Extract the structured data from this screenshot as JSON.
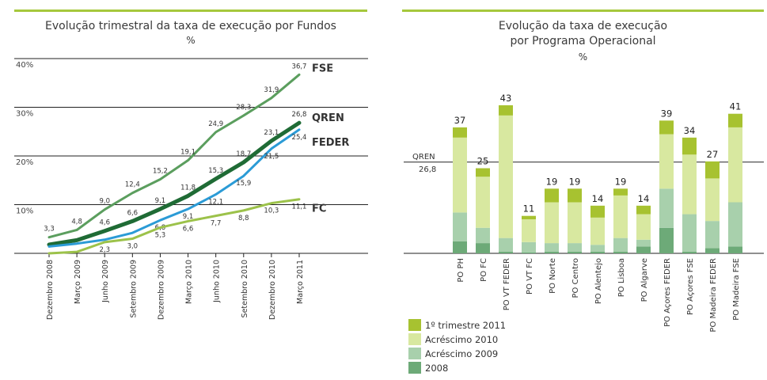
{
  "left": {
    "title": "Evolução trimestral da taxa de execução por Fundos",
    "unit": "%",
    "y_ticks": [
      "40%",
      "30%",
      "20%",
      "10%"
    ]
  },
  "right": {
    "title_line1": "Evolução da taxa de execução",
    "title_line2": "por Programa Operacional",
    "unit": "%",
    "ref_label": "QREN",
    "ref_value": "26,8"
  },
  "chart_data": [
    {
      "type": "line",
      "title": "Evolução trimestral da taxa de execução por Fundos",
      "unit": "%",
      "ylim": [
        0,
        40
      ],
      "y_ticks": [
        10,
        20,
        30,
        40
      ],
      "x": [
        "Dezembro 2008",
        "Março 2009",
        "Junho 2009",
        "Setembro 2009",
        "Dezembro 2009",
        "Março 2010",
        "Junho 2010",
        "Setembro 2010",
        "Dezembro 2010",
        "Março 2011"
      ],
      "series": [
        {
          "name": "FSE",
          "color": "#5b9e5e",
          "values": [
            3.3,
            4.8,
            9.0,
            12.4,
            15.2,
            19.1,
            24.9,
            28.3,
            31.9,
            36.7
          ],
          "labels": [
            "3,3",
            "4,8",
            "9,0",
            "12,4",
            "15,2",
            "19,1",
            "24,9",
            "28,3",
            "31,9",
            "36,7"
          ]
        },
        {
          "name": "QREN",
          "color": "#1f6b35",
          "values": [
            1.8,
            2.7,
            4.6,
            6.6,
            9.1,
            11.8,
            15.3,
            18.7,
            23.1,
            26.8
          ],
          "labels": [
            "",
            "",
            "4,6",
            "6,6",
            "9,1",
            "11,8",
            "15,3",
            "18,7",
            "23,1",
            "26,8"
          ]
        },
        {
          "name": "FEDER",
          "color": "#2b9bd6",
          "values": [
            1.4,
            2.0,
            2.8,
            4.2,
            6.8,
            9.1,
            12.1,
            15.9,
            21.5,
            25.4
          ],
          "labels": [
            "",
            "",
            "",
            "",
            "6,8",
            "9,1",
            "12,1",
            "15,9",
            "21,5",
            "25,4"
          ]
        },
        {
          "name": "FC",
          "color": "#9cc24a",
          "values": [
            0.0,
            0.3,
            2.3,
            3.0,
            5.3,
            6.6,
            7.7,
            8.8,
            10.3,
            11.1
          ],
          "labels": [
            "",
            "",
            "2,3",
            "3,0",
            "5,3",
            "6,6",
            "7,7",
            "8,8",
            "10,3",
            "11,1"
          ]
        }
      ]
    },
    {
      "type": "bar",
      "stacked": true,
      "title": "Evolução da taxa de execução por Programa Operacional",
      "unit": "%",
      "reference": {
        "label": "QREN",
        "value": 26.8,
        "text": "26,8"
      },
      "categories": [
        "PO PH",
        "PO FC",
        "PO VT FEDER",
        "PO VT FC",
        "PO Norte",
        "PO Centro",
        "PO Alentejo",
        "PO Lisboa",
        "PO Algarve",
        "PO Açores FEDER",
        "PO Açores FSE",
        "PO Madeira FEDER",
        "PO Madeira FSE"
      ],
      "totals": [
        37,
        25,
        43,
        11,
        19,
        19,
        14,
        19,
        14,
        39,
        34,
        27,
        41
      ],
      "series": [
        {
          "name": "2008",
          "color": "#6daa78",
          "values": [
            3.5,
            3.0,
            0.5,
            0.3,
            0.5,
            0.5,
            0.5,
            0.5,
            2.0,
            7.5,
            0.5,
            1.5,
            2.0
          ]
        },
        {
          "name": "Acréscimo 2009",
          "color": "#a8d0ac",
          "values": [
            8.5,
            4.5,
            4.0,
            3.0,
            2.5,
            2.5,
            2.0,
            4.0,
            2.0,
            11.5,
            11.0,
            8.0,
            13.0
          ]
        },
        {
          "name": "Acréscimo 2010",
          "color": "#d8e8a0",
          "values": [
            22.0,
            15.0,
            36.0,
            6.7,
            12.0,
            12.0,
            8.0,
            12.5,
            7.5,
            16.0,
            17.5,
            12.5,
            22.0
          ]
        },
        {
          "name": "1º trimestre 2011",
          "color": "#a7c230",
          "values": [
            3.0,
            2.5,
            3.0,
            1.0,
            4.0,
            4.0,
            3.5,
            2.0,
            2.5,
            4.0,
            5.0,
            5.0,
            4.0
          ]
        }
      ],
      "legend_order": [
        "1º trimestre 2011",
        "Acréscimo 2010",
        "Acréscimo 2009",
        "2008"
      ]
    }
  ]
}
